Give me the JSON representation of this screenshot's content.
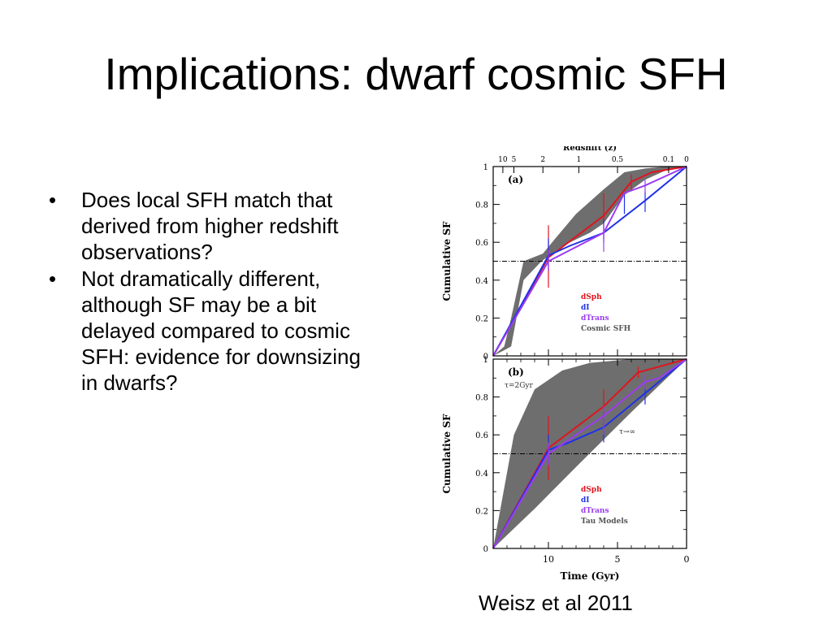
{
  "slide": {
    "title": "Implications: dwarf cosmic SFH",
    "bullets": [
      "Does local SFH match that derived from higher redshift observations?",
      "Not dramatically different, although SF may be a bit delayed compared to cosmic SFH: evidence for downsizing in dwarfs?"
    ],
    "citation": "Weisz et al 2011"
  },
  "colors": {
    "dSph": "#e0141e",
    "dI": "#2032e8",
    "dTrans": "#9b3cf0",
    "band": "#6e6e6e"
  },
  "chart_data": [
    {
      "type": "line",
      "panel_label": "(a)",
      "xlabel": "",
      "top_axis_label": "Redshift (z)",
      "top_ticks": [
        {
          "label": "10",
          "t": 13.3
        },
        {
          "label": "5",
          "t": 12.5
        },
        {
          "label": "2",
          "t": 10.4
        },
        {
          "label": "1",
          "t": 7.8
        },
        {
          "label": "0.5",
          "t": 5.0
        },
        {
          "label": "0.1",
          "t": 1.3
        },
        {
          "label": "0",
          "t": 0
        }
      ],
      "ylabel": "Cumulative SF",
      "xlim": [
        14,
        0
      ],
      "ylim": [
        0,
        1
      ],
      "yticks": [
        "0",
        "0.2",
        "0.4",
        "0.6",
        "0.8",
        "1"
      ],
      "reference_line": 0.5,
      "legend": {
        "position": "lower-right",
        "entries": [
          {
            "label": "dSph",
            "color": "#e0141e"
          },
          {
            "label": "dI",
            "color": "#2032e8"
          },
          {
            "label": "dTrans",
            "color": "#9b3cf0"
          },
          {
            "label": "Cosmic SFH",
            "color": "#6e6e6e"
          }
        ]
      },
      "band": {
        "name": "Cosmic SFH",
        "upper": [
          [
            14,
            0
          ],
          [
            13.2,
            0.05
          ],
          [
            12.7,
            0.2
          ],
          [
            11.8,
            0.5
          ],
          [
            10.4,
            0.54
          ],
          [
            9.5,
            0.62
          ],
          [
            8,
            0.75
          ],
          [
            6,
            0.88
          ],
          [
            4.5,
            0.97
          ],
          [
            3,
            0.99
          ],
          [
            1.5,
            1
          ],
          [
            0,
            1
          ]
        ],
        "lower": [
          [
            0,
            1
          ],
          [
            1.5,
            0.98
          ],
          [
            3,
            0.93
          ],
          [
            4.5,
            0.85
          ],
          [
            6,
            0.7
          ],
          [
            7,
            0.65
          ],
          [
            9,
            0.58
          ],
          [
            10.5,
            0.5
          ],
          [
            11.8,
            0.4
          ],
          [
            12.7,
            0.05
          ],
          [
            13.2,
            0.03
          ],
          [
            14,
            0
          ]
        ]
      },
      "series": [
        {
          "name": "dSph",
          "color": "#e0141e",
          "points": [
            [
              14,
              0
            ],
            [
              10,
              0.52
            ],
            [
              6,
              0.74
            ],
            [
              4,
              0.92
            ],
            [
              2.5,
              0.97
            ],
            [
              0,
              1
            ]
          ],
          "errors": [
            [
              10,
              0.36,
              0.69
            ],
            [
              6,
              0.62,
              0.86
            ],
            [
              4,
              0.87,
              0.96
            ]
          ]
        },
        {
          "name": "dI",
          "color": "#2032e8",
          "points": [
            [
              14,
              0
            ],
            [
              10,
              0.53
            ],
            [
              8.5,
              0.58
            ],
            [
              6,
              0.65
            ],
            [
              3,
              0.82
            ],
            [
              0,
              1
            ]
          ],
          "errors": [
            [
              10,
              0.45,
              0.62
            ],
            [
              6,
              0.6,
              0.72
            ],
            [
              4.5,
              0.75,
              0.86
            ],
            [
              3,
              0.76,
              0.87
            ]
          ]
        },
        {
          "name": "dTrans",
          "color": "#9b3cf0",
          "points": [
            [
              14,
              0
            ],
            [
              10,
              0.5
            ],
            [
              6,
              0.65
            ],
            [
              4.5,
              0.86
            ],
            [
              3,
              0.9
            ],
            [
              0,
              1
            ]
          ],
          "errors": [
            [
              10,
              0.45,
              0.56
            ],
            [
              6,
              0.55,
              0.7
            ],
            [
              3,
              0.86,
              0.93
            ]
          ]
        }
      ]
    },
    {
      "type": "line",
      "panel_label": "(b)",
      "xlabel": "Time (Gyr)",
      "xlim": [
        14,
        0
      ],
      "xticks": [
        "10",
        "5",
        "0"
      ],
      "ylabel": "Cumulative SF",
      "ylim": [
        0,
        1
      ],
      "yticks": [
        "0",
        "0.2",
        "0.4",
        "0.6",
        "0.8",
        "1"
      ],
      "reference_line": 0.5,
      "annotations": [
        "τ=2Gyr",
        "τ→∞"
      ],
      "legend": {
        "position": "lower-right",
        "entries": [
          {
            "label": "dSph",
            "color": "#e0141e"
          },
          {
            "label": "dI",
            "color": "#2032e8"
          },
          {
            "label": "dTrans",
            "color": "#9b3cf0"
          },
          {
            "label": "Tau Models",
            "color": "#6e6e6e"
          }
        ]
      },
      "band": {
        "name": "Tau Models",
        "upper": [
          [
            14,
            0
          ],
          [
            12.5,
            0.6
          ],
          [
            11,
            0.84
          ],
          [
            9,
            0.94
          ],
          [
            7,
            0.98
          ],
          [
            4,
            1
          ],
          [
            0,
            1
          ]
        ],
        "lower": [
          [
            0,
            1
          ],
          [
            4,
            0.72
          ],
          [
            8,
            0.43
          ],
          [
            11,
            0.21
          ],
          [
            14,
            0
          ]
        ]
      },
      "series": [
        {
          "name": "dSph",
          "color": "#e0141e",
          "points": [
            [
              14,
              0
            ],
            [
              10,
              0.53
            ],
            [
              6,
              0.75
            ],
            [
              3.5,
              0.93
            ],
            [
              2,
              0.96
            ],
            [
              0,
              1
            ]
          ],
          "errors": [
            [
              10,
              0.36,
              0.7
            ],
            [
              6,
              0.62,
              0.84
            ],
            [
              3.5,
              0.9,
              0.96
            ]
          ]
        },
        {
          "name": "dI",
          "color": "#2032e8",
          "points": [
            [
              14,
              0
            ],
            [
              10,
              0.52
            ],
            [
              8.5,
              0.56
            ],
            [
              6,
              0.64
            ],
            [
              3,
              0.82
            ],
            [
              0,
              1
            ]
          ],
          "errors": [
            [
              10,
              0.44,
              0.6
            ],
            [
              6,
              0.56,
              0.72
            ],
            [
              3,
              0.76,
              0.87
            ]
          ]
        },
        {
          "name": "dTrans",
          "color": "#9b3cf0",
          "points": [
            [
              14,
              0
            ],
            [
              10,
              0.5
            ],
            [
              6,
              0.7
            ],
            [
              3,
              0.88
            ],
            [
              2,
              0.9
            ],
            [
              0,
              1
            ]
          ],
          "errors": [
            [
              10,
              0.44,
              0.56
            ],
            [
              6,
              0.6,
              0.75
            ],
            [
              3,
              0.84,
              0.92
            ]
          ]
        }
      ]
    }
  ]
}
